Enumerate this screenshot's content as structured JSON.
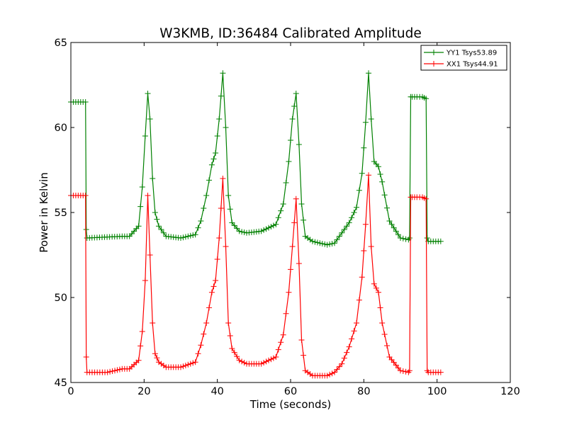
{
  "chart_data": {
    "type": "line",
    "title": "W3KMB, ID:36484 Calibrated Amplitude",
    "xlabel": "Time (seconds)",
    "ylabel": "Power in Kelvin",
    "xlim": [
      0,
      120
    ],
    "ylim": [
      45,
      65
    ],
    "xticks": [
      "0",
      "20",
      "40",
      "60",
      "80",
      "100",
      "120"
    ],
    "yticks": [
      "45",
      "50",
      "55",
      "60",
      "65"
    ],
    "grid": false,
    "legend_position": "top-right",
    "marker": "+",
    "series": [
      {
        "name": "YY1 Tsys53.89",
        "color": "#008000",
        "x": [
          0,
          4,
          4.2,
          4.4,
          14,
          16,
          18.5,
          19.5,
          20.3,
          21,
          21.6,
          22.3,
          23,
          24,
          26,
          30,
          34,
          35.5,
          37,
          38.5,
          39.5,
          40.5,
          41.5,
          42.3,
          43,
          44,
          46,
          48,
          52,
          56,
          58,
          59.5,
          60.5,
          61.5,
          62.3,
          63,
          64,
          66,
          70,
          72,
          74,
          76,
          78,
          79.5,
          80.5,
          81.3,
          82,
          82.8,
          84,
          85,
          87,
          90,
          92.2,
          92.5,
          92.8,
          93.2,
          94.5,
          96,
          97,
          97.3,
          97.6,
          101
        ],
        "values": [
          61.5,
          61.5,
          54,
          53.5,
          53.6,
          53.6,
          54.2,
          56.5,
          59.5,
          62,
          60.5,
          57,
          55,
          54.2,
          53.6,
          53.5,
          53.7,
          54.5,
          56,
          57.8,
          58.5,
          60.5,
          63.2,
          60,
          56,
          54.4,
          53.9,
          53.8,
          53.9,
          54.3,
          55.5,
          58,
          60.5,
          62,
          59,
          55.5,
          53.6,
          53.3,
          53.1,
          53.2,
          53.8,
          54.4,
          55.3,
          57.3,
          60.3,
          63.2,
          60.5,
          58,
          57.7,
          56.8,
          54.5,
          53.5,
          53.4,
          53.5,
          61.8,
          61.8,
          61.8,
          61.8,
          61.7,
          53.5,
          53.3,
          53.3
        ]
      },
      {
        "name": "XX1 Tsys44.91",
        "color": "#ff0000",
        "x": [
          0,
          4,
          4.2,
          4.4,
          10,
          14,
          16,
          18.5,
          19.5,
          20.3,
          21,
          21.6,
          22.3,
          23,
          24,
          26,
          30,
          34,
          35.5,
          37,
          38.5,
          39.5,
          40.5,
          41.5,
          42.3,
          43,
          44,
          46,
          48,
          52,
          56,
          58,
          59.5,
          60.5,
          61.5,
          62.3,
          63,
          64,
          66,
          70,
          72,
          74,
          76,
          78,
          79.5,
          80.5,
          81.3,
          82,
          82.8,
          84,
          85,
          87,
          90,
          92.2,
          92.5,
          92.8,
          93.2,
          94.5,
          96,
          97,
          97.3,
          97.6,
          101
        ],
        "values": [
          56,
          56,
          46.5,
          45.6,
          45.6,
          45.8,
          45.8,
          46.3,
          48,
          51,
          56,
          52.5,
          48.5,
          46.7,
          46.2,
          45.9,
          45.9,
          46.2,
          47.2,
          48.5,
          50.3,
          51,
          53.5,
          57,
          53,
          48.5,
          47,
          46.3,
          46.1,
          46.1,
          46.5,
          47.8,
          50.3,
          53,
          55.8,
          52,
          47.5,
          45.7,
          45.4,
          45.4,
          45.6,
          46.1,
          47.1,
          48.5,
          51.2,
          54.3,
          57.2,
          53,
          50.8,
          50.3,
          48.5,
          46.5,
          45.7,
          45.6,
          45.7,
          55.9,
          55.9,
          55.9,
          55.9,
          55.8,
          45.7,
          45.6,
          45.6
        ]
      }
    ]
  }
}
